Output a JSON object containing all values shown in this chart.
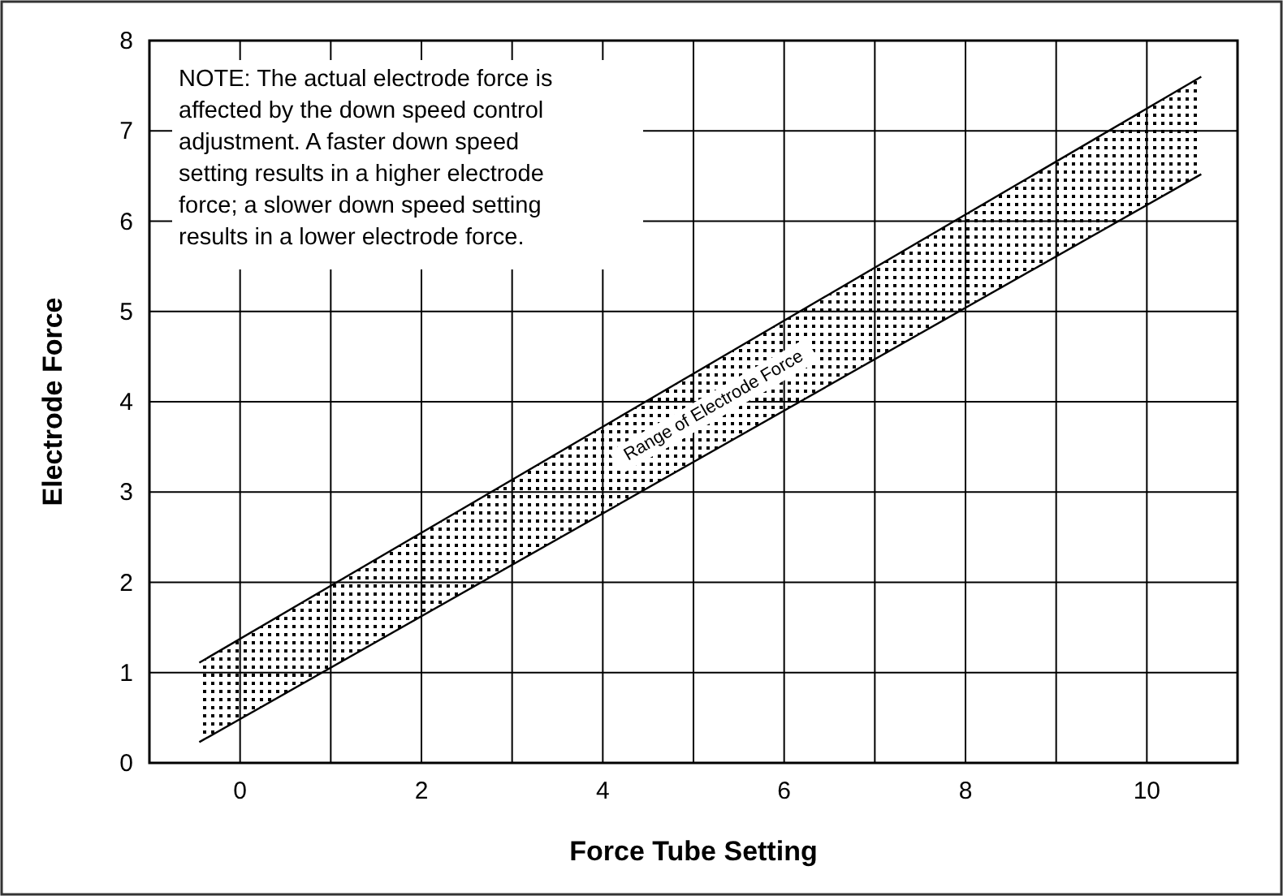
{
  "chart_data": {
    "type": "area",
    "xlabel": "Force Tube Setting",
    "ylabel": "Electrode Force",
    "xlim": [
      -1,
      11
    ],
    "ylim": [
      0,
      8
    ],
    "xticks": [
      0,
      {
        "value": 1,
        "label": null
      },
      2,
      {
        "value": 3,
        "label": null
      },
      4,
      {
        "value": 5,
        "label": null
      },
      6,
      {
        "value": 7,
        "label": null
      },
      8,
      {
        "value": 9,
        "label": null
      },
      10
    ],
    "yticks": [
      0,
      1,
      2,
      3,
      4,
      5,
      6,
      7,
      8
    ],
    "grid": true,
    "x": [
      -0.45,
      10.6
    ],
    "series": [
      {
        "type": "line",
        "color": "#000000",
        "values": [
          0.23,
          6.52
        ]
      },
      {
        "name": "Range of Electrode Force",
        "color": "#000000",
        "values": [
          1.11,
          7.6
        ]
      }
    ],
    "annotations": [
      "NOTE:  The actual electrode force is affected by the down speed control adjustment.  A faster down speed setting results in a higher electrode force; a slower down speed setting results in a lower electrode force."
    ]
  }
}
